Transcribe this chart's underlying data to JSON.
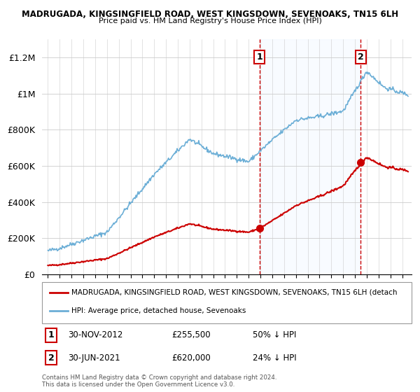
{
  "title1": "MADRUGADA, KINGSINGFIELD ROAD, WEST KINGSDOWN, SEVENOAKS, TN15 6LH",
  "title2": "Price paid vs. HM Land Registry's House Price Index (HPI)",
  "legend_label1": "MADRUGADA, KINGSINGFIELD ROAD, WEST KINGSDOWN, SEVENOAKS, TN15 6LH (detach",
  "legend_label2": "HPI: Average price, detached house, Sevenoaks",
  "annotation1_num": "1",
  "annotation1_date": "30-NOV-2012",
  "annotation1_price": "£255,500",
  "annotation1_note": "50% ↓ HPI",
  "annotation2_num": "2",
  "annotation2_date": "30-JUN-2021",
  "annotation2_price": "£620,000",
  "annotation2_note": "24% ↓ HPI",
  "footer": "Contains HM Land Registry data © Crown copyright and database right 2024.\nThis data is licensed under the Open Government Licence v3.0.",
  "hpi_color": "#6baed6",
  "sale_color": "#cc0000",
  "vline_color": "#cc0000",
  "bg_shade_color": "#ddeeff",
  "ylim_max": 1300000,
  "yticks": [
    0,
    200000,
    400000,
    600000,
    800000,
    1000000,
    1200000
  ],
  "ytick_labels": [
    "£0",
    "£200K",
    "£400K",
    "£600K",
    "£800K",
    "£1M",
    "£1.2M"
  ],
  "sale1_year": 2012.917,
  "sale2_year": 2021.5,
  "sale1_price": 255500,
  "sale2_price": 620000,
  "xmin": 1994.5,
  "xmax": 2025.8,
  "xtick_start": 1995,
  "xtick_end": 2026
}
